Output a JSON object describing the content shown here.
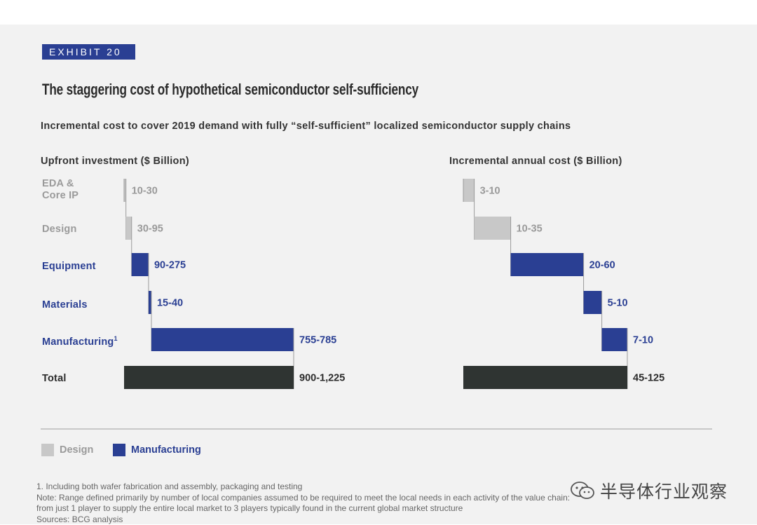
{
  "exhibit_label": "EXHIBIT 20",
  "title": "The staggering cost of hypothetical semiconductor self-sufficiency",
  "subtitle": "Incremental cost to cover 2019 demand with fully “self-sufficient” localized semiconductor supply chains",
  "colors": {
    "design": "#c8c8c8",
    "manufacturing": "#2a3f93",
    "total": "#2f3432",
    "design_text": "#9a9a9a"
  },
  "categories": [
    {
      "label_lines": [
        "EDA &",
        "Core IP"
      ],
      "group": "design"
    },
    {
      "label_lines": [
        "Design"
      ],
      "group": "design"
    },
    {
      "label_lines": [
        "Equipment"
      ],
      "group": "manufacturing"
    },
    {
      "label_lines": [
        "Materials"
      ],
      "group": "manufacturing"
    },
    {
      "label_lines": [
        "Manufacturing"
      ],
      "superscript": "1",
      "group": "manufacturing"
    },
    {
      "label_lines": [
        "Total"
      ],
      "group": "total"
    }
  ],
  "chart_data": [
    {
      "type": "bar",
      "subtype": "waterfall",
      "title": "Upfront investment ($ Billion)",
      "categories": [
        "EDA & Core IP",
        "Design",
        "Equipment",
        "Materials",
        "Manufacturing",
        "Total"
      ],
      "value_labels": [
        "10-30",
        "30-95",
        "90-275",
        "15-40",
        "755-785",
        "900-1,225"
      ],
      "values": [
        10,
        30,
        90,
        15,
        755,
        900
      ],
      "groups": [
        "design",
        "design",
        "manufacturing",
        "manufacturing",
        "manufacturing",
        "total"
      ]
    },
    {
      "type": "bar",
      "subtype": "waterfall",
      "title": "Incremental annual cost ($ Billion)",
      "categories": [
        "EDA & Core IP",
        "Design",
        "Equipment",
        "Materials",
        "Manufacturing",
        "Total"
      ],
      "value_labels": [
        "3-10",
        "10-35",
        "20-60",
        "5-10",
        "7-10",
        "45-125"
      ],
      "values": [
        3,
        10,
        20,
        5,
        7,
        45
      ],
      "groups": [
        "design",
        "design",
        "manufacturing",
        "manufacturing",
        "manufacturing",
        "total"
      ]
    }
  ],
  "legend": [
    {
      "label": "Design",
      "group": "design"
    },
    {
      "label": "Manufacturing",
      "group": "manufacturing"
    }
  ],
  "footnotes": [
    "1. Including both wafer fabrication and assembly, packaging and testing",
    "Note: Range defined primarily by number of local companies assumed to be required to meet the local needs in each activity of the value chain:",
    "from just 1 player to supply the entire local market to 3 players typically found in the current global market structure",
    "Sources: BCG analysis"
  ],
  "watermark": {
    "text": "半导体行业观察",
    "icon": "wechat-icon"
  }
}
